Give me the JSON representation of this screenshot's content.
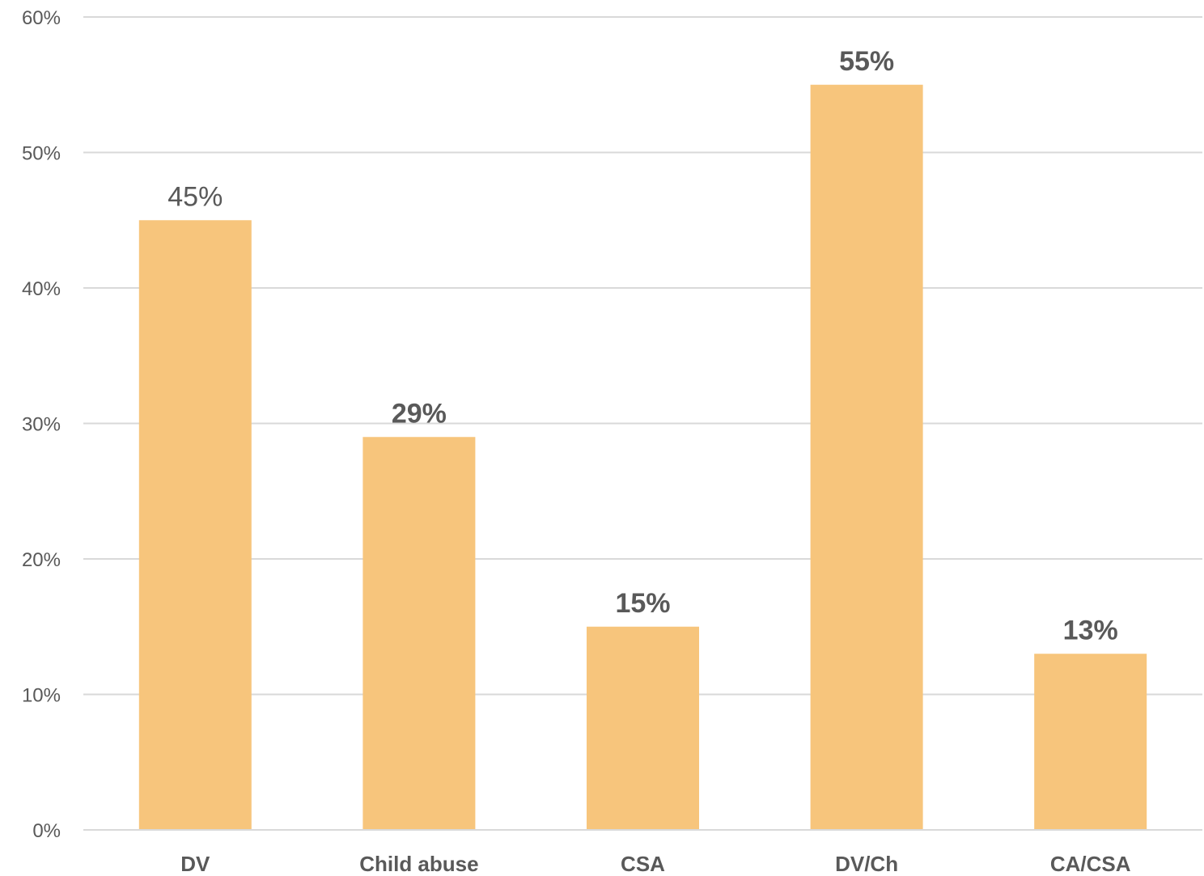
{
  "chart_data": {
    "type": "bar",
    "title": "",
    "xlabel": "",
    "ylabel": "",
    "categories": [
      "DV",
      "Child abuse",
      "CSA",
      "DV/Ch",
      "CA/CSA"
    ],
    "values": [
      45,
      29,
      15,
      55,
      13
    ],
    "value_labels": [
      "45%",
      "29%",
      "15%",
      "55%",
      "13%"
    ],
    "value_label_bold": [
      false,
      true,
      true,
      true,
      true
    ],
    "ylim": [
      0,
      60
    ],
    "y_ticks": [
      0,
      10,
      20,
      30,
      40,
      50,
      60
    ],
    "y_tick_labels": [
      "0%",
      "10%",
      "20%",
      "30%",
      "40%",
      "50%",
      "60%"
    ],
    "grid": true,
    "legend": "none",
    "colors": {
      "bar": "#F7C57C",
      "grid": "#D9D9D9",
      "axis_line": "#D9D9D9",
      "text": "#595959"
    }
  }
}
